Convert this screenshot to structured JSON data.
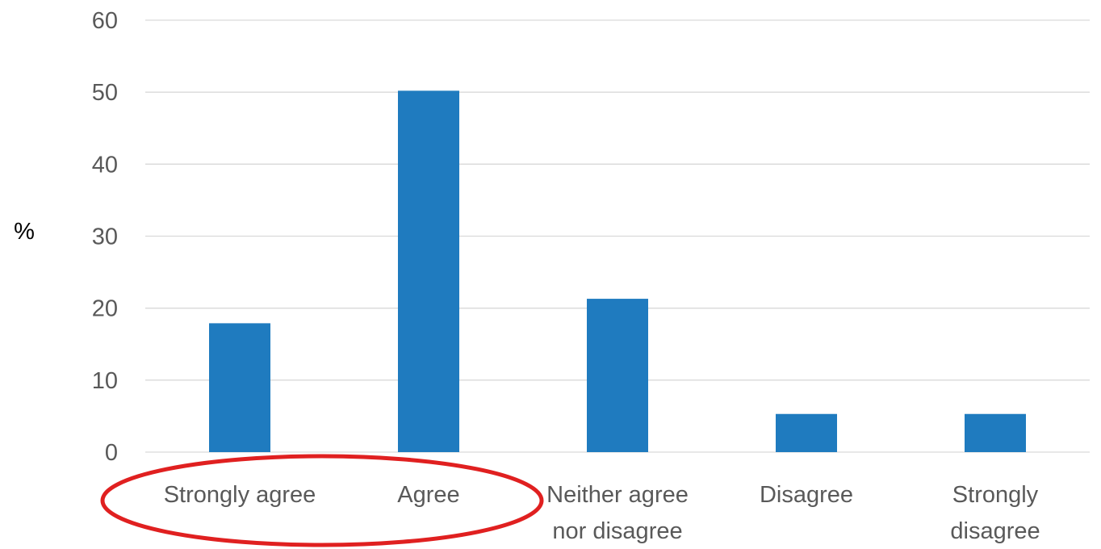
{
  "chart_data": {
    "type": "bar",
    "categories": [
      [
        "Strongly agree"
      ],
      [
        "Agree"
      ],
      [
        "Neither agree",
        "nor disagree"
      ],
      [
        "Disagree"
      ],
      [
        "Strongly",
        "disagree"
      ]
    ],
    "values": [
      17.9,
      50.2,
      21.3,
      5.3,
      5.3
    ],
    "ylabel": "%",
    "ylim": [
      0,
      60
    ],
    "yticks": [
      0,
      10,
      20,
      30,
      40,
      50,
      60
    ],
    "grid": true,
    "bar_color": "#1f7bbf",
    "highlight": {
      "shape": "ellipse",
      "color": "#e02020",
      "covers_categories": [
        "Strongly agree",
        "Agree"
      ]
    }
  }
}
